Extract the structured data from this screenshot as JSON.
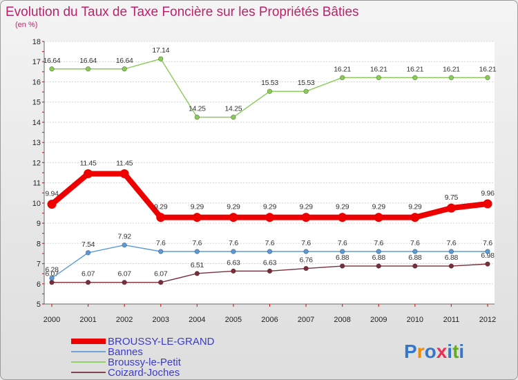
{
  "chart_data": {
    "type": "line",
    "title": "Evolution du Taux de Taxe Foncière sur les Propriétés Bâties",
    "subtitle": "(en %)",
    "xlabel": "",
    "ylabel": "",
    "ylim": [
      5,
      18
    ],
    "y_ticks": [
      "5",
      "6",
      "7",
      "8",
      "9",
      "10",
      "11",
      "12",
      "13",
      "14",
      "15",
      "16",
      "17",
      "18"
    ],
    "x": [
      "2000",
      "2001",
      "2002",
      "2003",
      "2004",
      "2005",
      "2006",
      "2007",
      "2008",
      "2009",
      "2010",
      "2011",
      "2012"
    ],
    "grid": "horizontal",
    "legend_position": "bottom-left",
    "series": [
      {
        "name": "BROUSSY-LE-GRAND",
        "color": "#ee0000",
        "values": [
          9.94,
          11.45,
          11.45,
          9.29,
          9.29,
          9.29,
          9.29,
          9.29,
          9.29,
          9.29,
          9.29,
          9.75,
          9.96
        ],
        "labels": [
          "9.94",
          "11.45",
          "11.45",
          "9.29",
          "9.29",
          "9.29",
          "9.29",
          "9.29",
          "9.29",
          "9.29",
          "9.29",
          "9.75",
          "9.96"
        ]
      },
      {
        "name": "Bannes",
        "color": "#5b9bd5",
        "values": [
          6.28,
          7.54,
          7.92,
          7.6,
          7.6,
          7.6,
          7.6,
          7.6,
          7.6,
          7.6,
          7.6,
          7.6,
          7.6
        ],
        "labels": [
          "6.28",
          "7.54",
          "7.92",
          "7.6",
          "7.6",
          "7.6",
          "7.6",
          "7.6",
          "7.6",
          "7.6",
          "7.6",
          "7.6",
          "7.6"
        ]
      },
      {
        "name": "Broussy-le-Petit",
        "color": "#88cc55",
        "values": [
          16.64,
          16.64,
          16.64,
          17.14,
          14.25,
          14.25,
          15.53,
          15.53,
          16.21,
          16.21,
          16.21,
          16.21,
          16.21
        ],
        "labels": [
          "16.64",
          "16.64",
          "16.64",
          "17.14",
          "14.25",
          "14.25",
          "15.53",
          "15.53",
          "16.21",
          "16.21",
          "16.21",
          "16.21",
          "16.21"
        ]
      },
      {
        "name": "Coizard-Joches",
        "color": "#7a2e3a",
        "values": [
          6.07,
          6.07,
          6.07,
          6.07,
          6.51,
          6.63,
          6.63,
          6.76,
          6.88,
          6.88,
          6.88,
          6.88,
          6.98
        ],
        "labels": [
          "6.07",
          "6.07",
          "6.07",
          "6.07",
          "6.51",
          "6.63",
          "6.63",
          "6.76",
          "6.88",
          "6.88",
          "6.88",
          "6.88",
          "6.98"
        ]
      }
    ]
  },
  "logo": {
    "letters": [
      "P",
      "r",
      "o",
      "x",
      "i",
      "t",
      "i"
    ],
    "colors": [
      "#3377cc",
      "#f08a00",
      "#3377cc",
      "#e83050",
      "#3377cc",
      "#66aa22",
      "#3377cc"
    ]
  }
}
